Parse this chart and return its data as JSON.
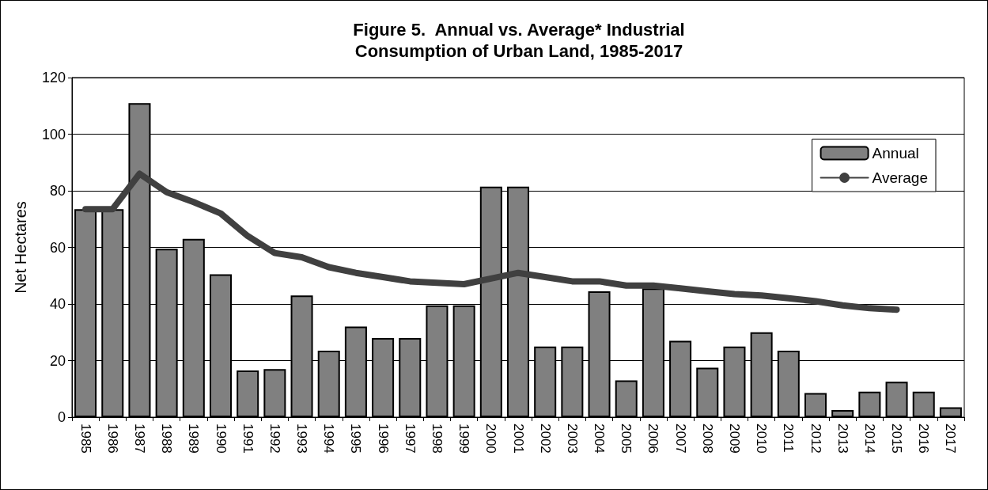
{
  "chart_data": {
    "type": "bar",
    "title": "Figure 5.  Annual vs. Average* Industrial\nConsumption of Urban Land, 1985-2017",
    "ylabel": "Net Hectares",
    "categories": [
      "1985",
      "1986",
      "1987",
      "1988",
      "1989",
      "1990",
      "1991",
      "1992",
      "1993",
      "1994",
      "1995",
      "1996",
      "1997",
      "1998",
      "1999",
      "2000",
      "2001",
      "2002",
      "2003",
      "2004",
      "2005",
      "2006",
      "2007",
      "2008",
      "2009",
      "2010",
      "2011",
      "2012",
      "2013",
      "2014",
      "2015",
      "2016",
      "2017"
    ],
    "series": [
      {
        "name": "Annual",
        "color": "#808080",
        "values": [
          73.5,
          73.5,
          111,
          59.5,
          63,
          50.5,
          16.5,
          17,
          43,
          23.5,
          32,
          28,
          28,
          39.5,
          39.5,
          81.5,
          81.5,
          25,
          25,
          44.5,
          13,
          45.5,
          27,
          17.5,
          25,
          30,
          23.5,
          8.5,
          2.5,
          9,
          12.5,
          9,
          3.5
        ]
      },
      {
        "name": "Average",
        "type": "line",
        "color": "#404040",
        "values": [
          73.5,
          73.5,
          86,
          79.5,
          76,
          72,
          64,
          58,
          56.5,
          53,
          51,
          49.5,
          48,
          47.5,
          47,
          49,
          51,
          49.5,
          48,
          48,
          46.5,
          46.5,
          45.5,
          44.5,
          43.5,
          43,
          42,
          41,
          39.5,
          38.5,
          38,
          null,
          null
        ]
      }
    ],
    "ylim": [
      0,
      120
    ],
    "yticks": [
      0,
      20,
      40,
      60,
      80,
      100,
      120
    ],
    "grid": "y",
    "legend": "top right",
    "line_style": "solid"
  }
}
